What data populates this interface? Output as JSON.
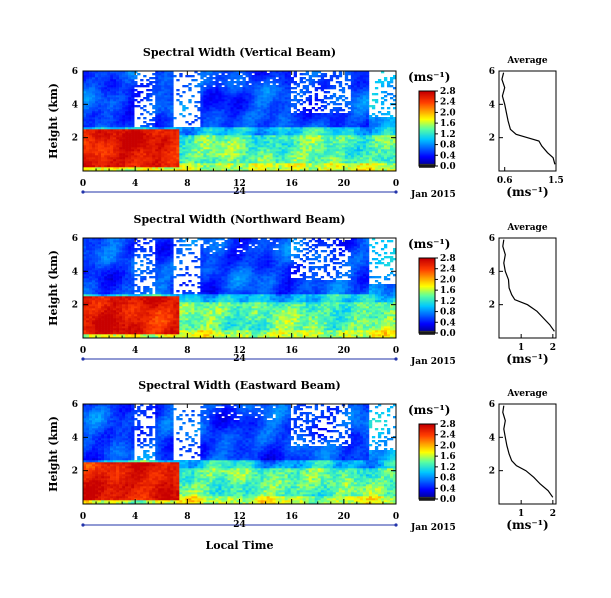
{
  "chart_data": [
    {
      "type": "heatmap",
      "title": "Spectral Width (Vertical Beam)",
      "ylabel": "Height (km)",
      "xlim": [
        0,
        24
      ],
      "ylim": [
        0,
        6
      ],
      "x_ticks": [
        "0",
        "4",
        "8",
        "12",
        "16",
        "20",
        "0"
      ],
      "y_ticks": [
        "2",
        "4",
        "6"
      ],
      "date_label": "24",
      "month_label": "Jan 2015",
      "colorbar": {
        "unit": "(ms⁻¹)",
        "range": [
          0,
          2.8
        ],
        "tick_values": [
          0.0,
          0.4,
          0.8,
          1.2,
          1.6,
          2.0,
          2.4,
          2.8
        ],
        "tick_labels": [
          "0.0",
          "0.4",
          "0.8",
          "1.2",
          "1.6",
          "2.0",
          "2.4",
          "2.8"
        ]
      },
      "profile": {
        "title": "Average",
        "xlabel": "(ms⁻¹)",
        "xlim": [
          0.5,
          1.5
        ],
        "x_tick_values": [
          0.6,
          1.5
        ],
        "x_tick_labels": [
          "0.6",
          "1.5"
        ],
        "ylim": [
          0,
          6
        ],
        "y_ticks": [
          "2",
          "4",
          "6"
        ],
        "points": [
          [
            1.48,
            0.4
          ],
          [
            1.45,
            0.8
          ],
          [
            1.35,
            1.1
          ],
          [
            1.25,
            1.5
          ],
          [
            1.2,
            1.8
          ],
          [
            1.0,
            2.0
          ],
          [
            0.8,
            2.2
          ],
          [
            0.7,
            2.5
          ],
          [
            0.66,
            3.0
          ],
          [
            0.63,
            3.5
          ],
          [
            0.6,
            4.0
          ],
          [
            0.56,
            4.5
          ],
          [
            0.6,
            5.0
          ],
          [
            0.55,
            5.5
          ],
          [
            0.58,
            5.9
          ]
        ]
      }
    },
    {
      "type": "heatmap",
      "title": "Spectral Width (Northward Beam)",
      "ylabel": "Height (km)",
      "xlim": [
        0,
        24
      ],
      "ylim": [
        0,
        6
      ],
      "x_ticks": [
        "0",
        "4",
        "8",
        "12",
        "16",
        "20",
        "0"
      ],
      "y_ticks": [
        "2",
        "4",
        "6"
      ],
      "date_label": "24",
      "month_label": "Jan 2015",
      "colorbar": {
        "unit": "(ms⁻¹)",
        "range": [
          0,
          2.8
        ],
        "tick_values": [
          0.0,
          0.4,
          0.8,
          1.2,
          1.6,
          2.0,
          2.4,
          2.8
        ],
        "tick_labels": [
          "0.0",
          "0.4",
          "0.8",
          "1.2",
          "1.6",
          "2.0",
          "2.4",
          "2.8"
        ]
      },
      "profile": {
        "title": "Average",
        "xlabel": "(ms⁻¹)",
        "xlim": [
          0.3,
          2.1
        ],
        "x_tick_values": [
          1,
          2
        ],
        "x_tick_labels": [
          "1",
          "2"
        ],
        "ylim": [
          0,
          6
        ],
        "y_ticks": [
          "2",
          "4",
          "6"
        ],
        "points": [
          [
            2.05,
            0.4
          ],
          [
            1.9,
            0.8
          ],
          [
            1.7,
            1.2
          ],
          [
            1.5,
            1.6
          ],
          [
            1.2,
            2.0
          ],
          [
            0.8,
            2.3
          ],
          [
            0.7,
            2.6
          ],
          [
            0.62,
            3.0
          ],
          [
            0.6,
            3.5
          ],
          [
            0.5,
            4.0
          ],
          [
            0.45,
            4.5
          ],
          [
            0.5,
            5.0
          ],
          [
            0.42,
            5.5
          ],
          [
            0.45,
            5.9
          ]
        ]
      }
    },
    {
      "type": "heatmap",
      "title": "Spectral Width (Eastward Beam)",
      "ylabel": "Height (km)",
      "xlim": [
        0,
        24
      ],
      "ylim": [
        0,
        6
      ],
      "x_ticks": [
        "0",
        "4",
        "8",
        "12",
        "16",
        "20",
        "0"
      ],
      "y_ticks": [
        "2",
        "4",
        "6"
      ],
      "date_label": "24",
      "month_label": "Jan 2015",
      "xlabel": "Local Time",
      "colorbar": {
        "unit": "(ms⁻¹)",
        "range": [
          0,
          2.8
        ],
        "tick_values": [
          0.0,
          0.4,
          0.8,
          1.2,
          1.6,
          2.0,
          2.4,
          2.8
        ],
        "tick_labels": [
          "0.0",
          "0.4",
          "0.8",
          "1.2",
          "1.6",
          "2.0",
          "2.4",
          "2.8"
        ]
      },
      "profile": {
        "title": "Average",
        "xlabel": "(ms⁻¹)",
        "xlim": [
          0.3,
          2.1
        ],
        "x_tick_values": [
          1,
          2
        ],
        "x_tick_labels": [
          "1",
          "2"
        ],
        "ylim": [
          0,
          6
        ],
        "y_ticks": [
          "2",
          "4",
          "6"
        ],
        "points": [
          [
            2.0,
            0.4
          ],
          [
            1.85,
            0.8
          ],
          [
            1.6,
            1.2
          ],
          [
            1.4,
            1.6
          ],
          [
            1.15,
            2.0
          ],
          [
            0.85,
            2.3
          ],
          [
            0.7,
            2.6
          ],
          [
            0.62,
            3.0
          ],
          [
            0.55,
            3.5
          ],
          [
            0.5,
            4.0
          ],
          [
            0.45,
            4.5
          ],
          [
            0.5,
            5.0
          ],
          [
            0.42,
            5.5
          ],
          [
            0.45,
            5.9
          ]
        ]
      }
    }
  ]
}
